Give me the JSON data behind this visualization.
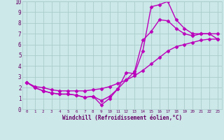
{
  "background_color": "#cce8e8",
  "grid_color": "#aacccc",
  "line_color": "#bb00bb",
  "marker": "D",
  "markersize": 2.5,
  "linewidth": 1.0,
  "xlabel": "Windchill (Refroidissement éolien,°C)",
  "xlabel_color": "#660066",
  "xlim": [
    -0.5,
    23.5
  ],
  "ylim": [
    0,
    10
  ],
  "xticks": [
    0,
    1,
    2,
    3,
    4,
    5,
    6,
    7,
    8,
    9,
    10,
    11,
    12,
    13,
    14,
    15,
    16,
    17,
    18,
    19,
    20,
    21,
    22,
    23
  ],
  "yticks": [
    0,
    1,
    2,
    3,
    4,
    5,
    6,
    7,
    8,
    9,
    10
  ],
  "curve1_x": [
    0,
    1,
    2,
    3,
    4,
    5,
    6,
    7,
    8,
    9,
    10,
    11,
    12,
    13,
    14,
    15,
    16,
    17,
    18,
    19,
    20,
    21,
    22,
    23
  ],
  "curve1_y": [
    2.5,
    2.0,
    1.7,
    1.5,
    1.4,
    1.4,
    1.3,
    1.1,
    1.2,
    0.4,
    1.0,
    1.9,
    3.4,
    3.3,
    5.4,
    9.5,
    9.7,
    10.0,
    8.3,
    7.5,
    7.0,
    7.0,
    7.0,
    6.5
  ],
  "curve2_x": [
    0,
    1,
    2,
    3,
    4,
    5,
    6,
    7,
    8,
    9,
    10,
    11,
    12,
    13,
    14,
    15,
    16,
    17,
    18,
    19,
    20,
    21,
    22,
    23
  ],
  "curve2_y": [
    2.5,
    2.0,
    1.7,
    1.5,
    1.4,
    1.4,
    1.3,
    1.1,
    1.2,
    0.8,
    1.2,
    1.9,
    2.7,
    3.5,
    6.4,
    7.2,
    8.3,
    8.2,
    7.5,
    7.0,
    6.8,
    7.0,
    7.0,
    7.0
  ],
  "curve3_x": [
    0,
    1,
    2,
    3,
    4,
    5,
    6,
    7,
    8,
    9,
    10,
    11,
    12,
    13,
    14,
    15,
    16,
    17,
    18,
    19,
    20,
    21,
    22,
    23
  ],
  "curve3_y": [
    2.5,
    2.1,
    2.0,
    1.8,
    1.7,
    1.7,
    1.7,
    1.7,
    1.8,
    1.9,
    2.1,
    2.4,
    2.7,
    3.1,
    3.6,
    4.2,
    4.8,
    5.4,
    5.8,
    6.0,
    6.2,
    6.4,
    6.5,
    6.5
  ]
}
